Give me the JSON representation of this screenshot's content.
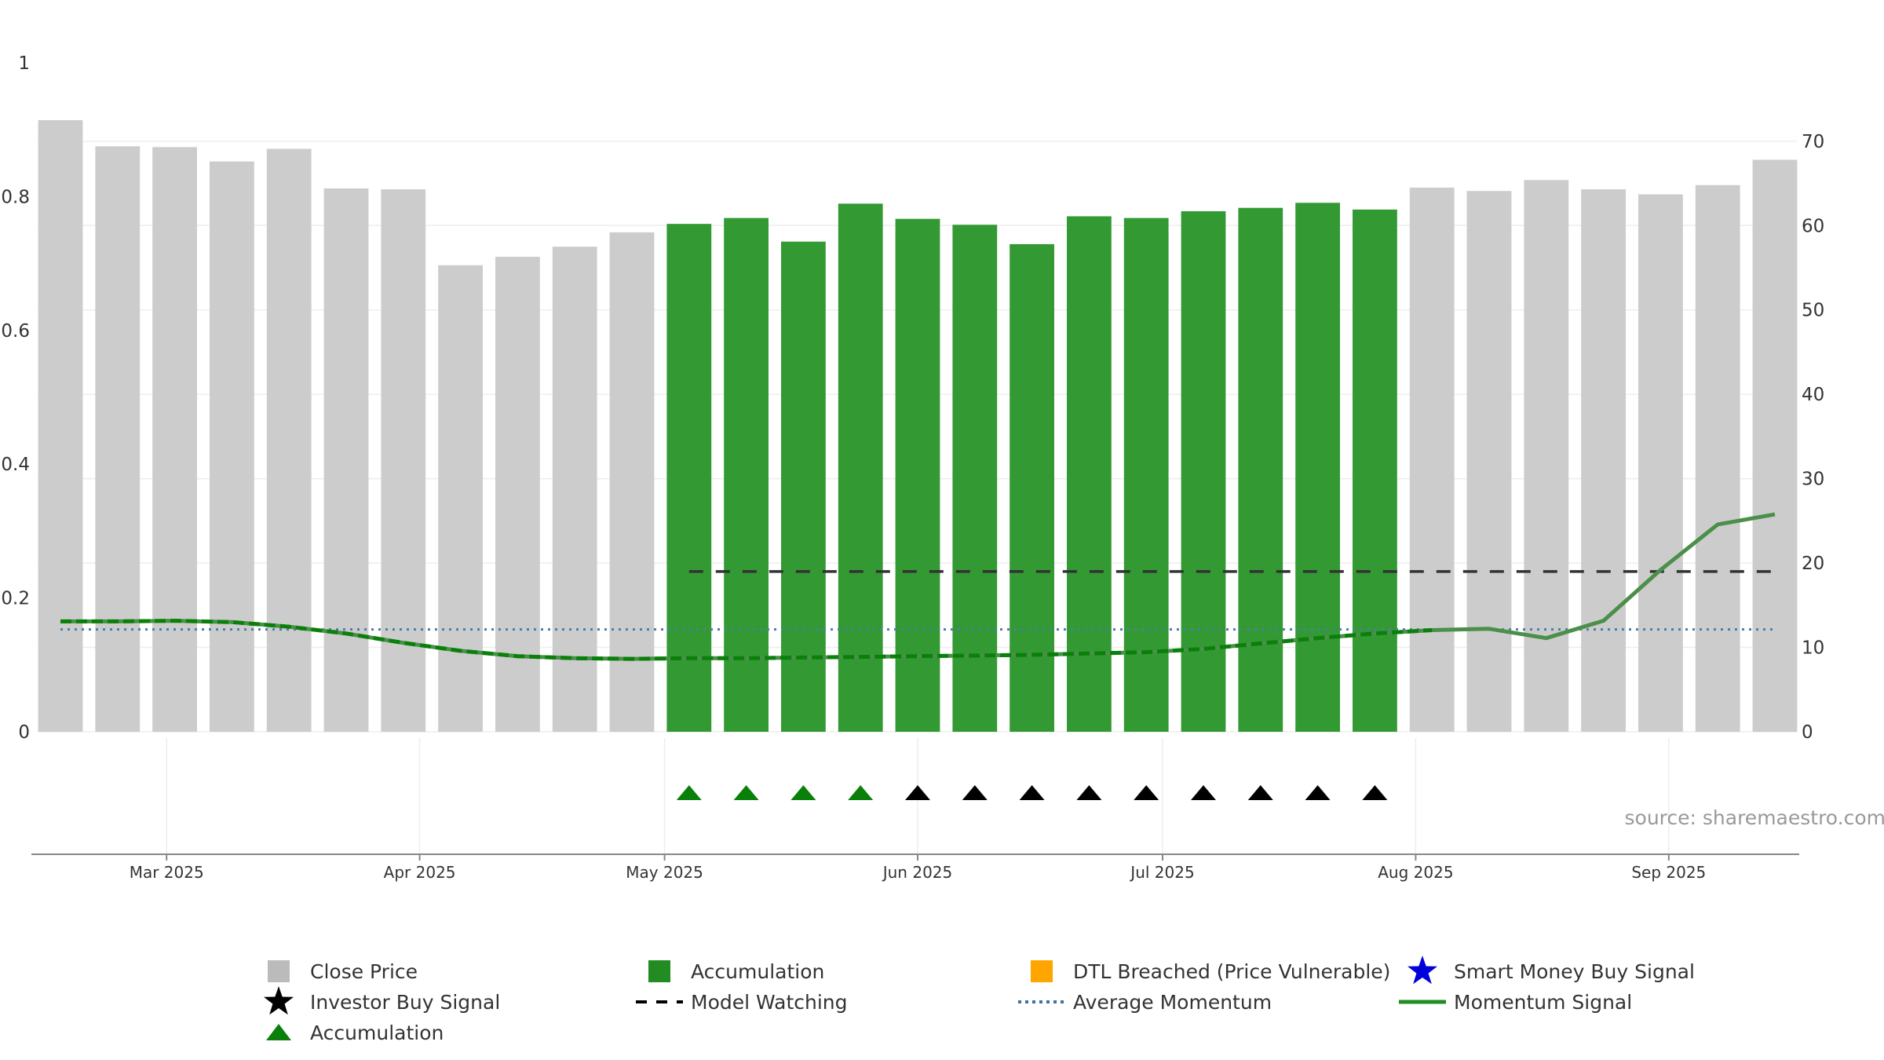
{
  "chart_data": {
    "type": "bar",
    "x": [
      "2025-02-16",
      "2025-02-23",
      "2025-03-02",
      "2025-03-09",
      "2025-03-16",
      "2025-03-23",
      "2025-03-30",
      "2025-04-06",
      "2025-04-13",
      "2025-04-20",
      "2025-04-27",
      "2025-05-04",
      "2025-05-11",
      "2025-05-18",
      "2025-05-25",
      "2025-06-01",
      "2025-06-08",
      "2025-06-15",
      "2025-06-22",
      "2025-06-29",
      "2025-07-06",
      "2025-07-13",
      "2025-07-20",
      "2025-07-27",
      "2025-08-03",
      "2025-08-10",
      "2025-08-17",
      "2025-08-24",
      "2025-08-31",
      "2025-09-07",
      "2025-09-14"
    ],
    "series": [
      {
        "name": "Close Price",
        "axis": "right",
        "color": "#cccccc",
        "accumulation_color": "#339933",
        "values": [
          72.5,
          69.4,
          69.3,
          67.6,
          69.1,
          64.4,
          64.3,
          55.3,
          56.3,
          57.5,
          59.2,
          60.2,
          60.9,
          58.1,
          62.6,
          60.8,
          60.1,
          57.8,
          61.1,
          60.9,
          61.7,
          62.1,
          62.7,
          61.9,
          64.5,
          64.1,
          65.4,
          64.3,
          63.7,
          64.8,
          67.8
        ],
        "accumulation": [
          false,
          false,
          false,
          false,
          false,
          false,
          false,
          false,
          false,
          false,
          false,
          true,
          true,
          true,
          true,
          true,
          true,
          true,
          true,
          true,
          true,
          true,
          true,
          true,
          false,
          false,
          false,
          false,
          false,
          false,
          false
        ]
      },
      {
        "name": "Momentum Signal",
        "axis": "left",
        "color": "#4a8f4a",
        "accumulation_color": "#0a800a",
        "type": "line",
        "values": [
          0.165,
          0.165,
          0.166,
          0.164,
          0.157,
          0.147,
          0.133,
          0.121,
          0.113,
          0.11,
          0.109,
          0.11,
          0.11,
          0.111,
          0.112,
          0.113,
          0.114,
          0.115,
          0.117,
          0.119,
          0.124,
          0.132,
          0.14,
          0.147,
          0.152,
          0.154,
          0.14,
          0.166,
          0.242,
          0.31,
          0.325
        ]
      },
      {
        "name": "Average Momentum",
        "axis": "left",
        "color": "#4d7ea8",
        "type": "line",
        "style": "dotted",
        "value": 0.153
      },
      {
        "name": "Model Watching",
        "axis": "right",
        "color": "#333333",
        "type": "line",
        "style": "dashed",
        "value": 19.0,
        "start_index": 11
      }
    ],
    "signals": [
      {
        "index": 11,
        "type": "Accumulation",
        "color": "#0a800a"
      },
      {
        "index": 12,
        "type": "Accumulation",
        "color": "#0a800a"
      },
      {
        "index": 13,
        "type": "Accumulation",
        "color": "#0a800a"
      },
      {
        "index": 14,
        "type": "Accumulation",
        "color": "#0a800a"
      },
      {
        "index": 15,
        "type": "Investor",
        "color": "#000000"
      },
      {
        "index": 16,
        "type": "Investor",
        "color": "#000000"
      },
      {
        "index": 17,
        "type": "Investor",
        "color": "#000000"
      },
      {
        "index": 18,
        "type": "Investor",
        "color": "#000000"
      },
      {
        "index": 19,
        "type": "Investor",
        "color": "#000000"
      },
      {
        "index": 20,
        "type": "Investor",
        "color": "#000000"
      },
      {
        "index": 21,
        "type": "Investor",
        "color": "#000000"
      },
      {
        "index": 22,
        "type": "Investor",
        "color": "#000000"
      },
      {
        "index": 23,
        "type": "Investor",
        "color": "#000000"
      }
    ],
    "left_axis": {
      "ylim": [
        0,
        1
      ],
      "ticks": [
        0,
        0.2,
        0.4,
        0.6,
        0.8,
        1
      ],
      "tick_labels": [
        "0",
        "0.2",
        "0.4",
        "0.6",
        "0.8",
        "1"
      ]
    },
    "right_axis": {
      "ylim": [
        0,
        76.5
      ],
      "ticks": [
        0,
        10,
        20,
        30,
        40,
        50,
        60,
        70
      ],
      "tick_labels": [
        "0",
        "10",
        "20",
        "30",
        "40",
        "50",
        "60",
        "70"
      ]
    },
    "date_ticks": [
      {
        "date": "2025-03-01",
        "label": "Mar 2025"
      },
      {
        "date": "2025-04-01",
        "label": "Apr 2025"
      },
      {
        "date": "2025-05-01",
        "label": "May 2025"
      },
      {
        "date": "2025-06-01",
        "label": "Jun 2025"
      },
      {
        "date": "2025-07-01",
        "label": "Jul 2025"
      },
      {
        "date": "2025-08-01",
        "label": "Aug 2025"
      },
      {
        "date": "2025-09-01",
        "label": "Sep 2025"
      }
    ],
    "grid": true,
    "source": "source: sharemaestro.com",
    "legend": [
      {
        "label": "Close Price",
        "symbol": "square",
        "color": "#bbbbbb"
      },
      {
        "label": "Accumulation",
        "symbol": "square",
        "color": "#228b22"
      },
      {
        "label": "DTL Breached (Price Vulnerable)",
        "symbol": "square",
        "color": "#ffa500"
      },
      {
        "label": "Smart Money Buy Signal",
        "symbol": "star",
        "color": "#0000dd"
      },
      {
        "label": "Investor Buy Signal",
        "symbol": "star",
        "color": "#000000"
      },
      {
        "label": "Model Watching",
        "symbol": "dash",
        "color": "#000000"
      },
      {
        "label": "Average Momentum",
        "symbol": "dot",
        "color": "#3b74a0"
      },
      {
        "label": "Momentum Signal",
        "symbol": "line",
        "color": "#228b22"
      },
      {
        "label": "Accumulation",
        "symbol": "triangle",
        "color": "#0a800a"
      }
    ],
    "legend_position": "bottom"
  }
}
